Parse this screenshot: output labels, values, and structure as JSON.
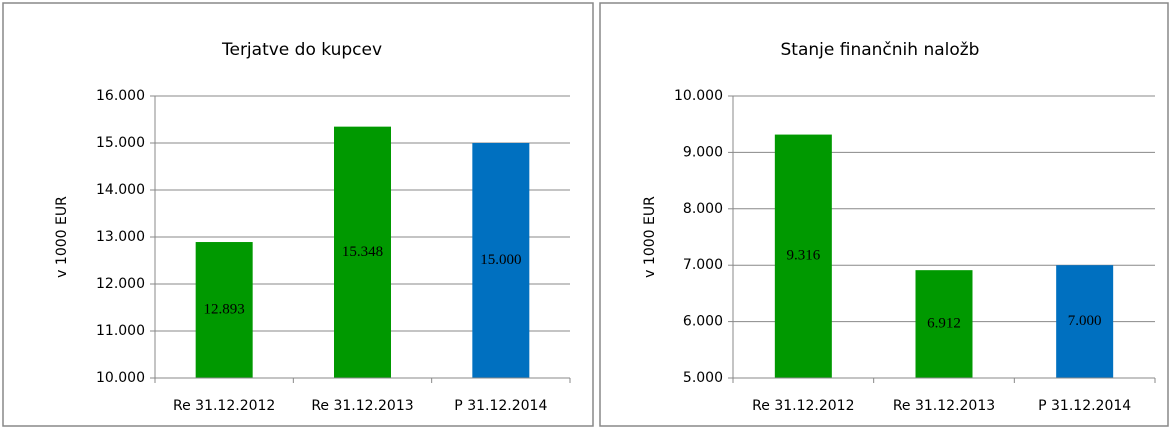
{
  "chart_data": [
    {
      "type": "bar",
      "title": "Terjatve do kupcev",
      "y_label": "v 1000 EUR",
      "categories": [
        "Re 31.12.2012",
        "Re 31.12.2013",
        "P 31.12.2014"
      ],
      "values": [
        12893,
        15348,
        15000
      ],
      "value_labels": [
        "12.893",
        "15.348",
        "15.000"
      ],
      "colors": [
        "#009900",
        "#009900",
        "#0070c0"
      ],
      "ylim": [
        10000,
        16000
      ],
      "yticks": [
        {
          "value": 10000,
          "label": "10.000"
        },
        {
          "value": 11000,
          "label": "11.000"
        },
        {
          "value": 12000,
          "label": "12.000"
        },
        {
          "value": 13000,
          "label": "13.000"
        },
        {
          "value": 14000,
          "label": "14.000"
        },
        {
          "value": 15000,
          "label": "15.000"
        },
        {
          "value": 16000,
          "label": "16.000"
        }
      ],
      "grid": true
    },
    {
      "type": "bar",
      "title": "Stanje finančnih naložb",
      "y_label": "v 1000 EUR",
      "categories": [
        "Re 31.12.2012",
        "Re 31.12.2013",
        "P 31.12.2014"
      ],
      "values": [
        9316,
        6912,
        7000
      ],
      "value_labels": [
        "9.316",
        "6.912",
        "7.000"
      ],
      "colors": [
        "#009900",
        "#009900",
        "#0070c0"
      ],
      "ylim": [
        5000,
        10000
      ],
      "yticks": [
        {
          "value": 5000,
          "label": "5.000"
        },
        {
          "value": 6000,
          "label": "6.000"
        },
        {
          "value": 7000,
          "label": "7.000"
        },
        {
          "value": 8000,
          "label": "8.000"
        },
        {
          "value": 9000,
          "label": "9.000"
        },
        {
          "value": 10000,
          "label": "10.000"
        }
      ],
      "grid": true
    }
  ]
}
